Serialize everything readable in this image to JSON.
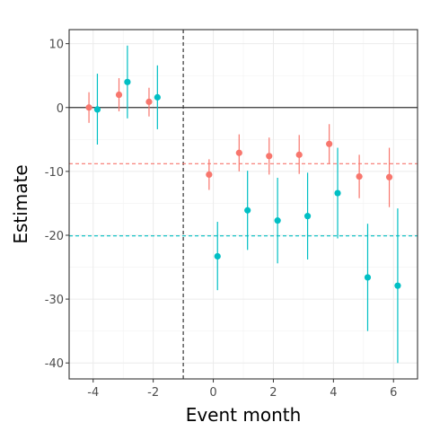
{
  "chart_data": {
    "type": "scatter",
    "xlabel": "Event month",
    "ylabel": "Estimate",
    "xlim": [
      -4.8,
      6.8
    ],
    "ylim": [
      -42.5,
      12.2
    ],
    "xticks": [
      -4,
      -2,
      0,
      2,
      4,
      6
    ],
    "yticks": [
      10,
      0,
      -10,
      -20,
      -30,
      -40
    ],
    "grid": true,
    "legend": "none",
    "event_line_x": -1,
    "zero_line_y": 0,
    "series": [
      {
        "color": "#F8766D",
        "mean_line": -8.8,
        "points": [
          {
            "x": -4,
            "y": 0.0,
            "lo": -2.4,
            "hi": 2.4
          },
          {
            "x": -3,
            "y": 2.0,
            "lo": -0.6,
            "hi": 4.6
          },
          {
            "x": -2,
            "y": 0.9,
            "lo": -1.4,
            "hi": 3.1
          },
          {
            "x": 0,
            "y": -10.5,
            "lo": -12.9,
            "hi": -8.1
          },
          {
            "x": 1,
            "y": -7.1,
            "lo": -10.0,
            "hi": -4.2
          },
          {
            "x": 2,
            "y": -7.6,
            "lo": -10.5,
            "hi": -4.7
          },
          {
            "x": 3,
            "y": -7.4,
            "lo": -10.4,
            "hi": -4.3
          },
          {
            "x": 4,
            "y": -5.7,
            "lo": -8.8,
            "hi": -2.6
          },
          {
            "x": 5,
            "y": -10.8,
            "lo": -14.2,
            "hi": -7.4
          },
          {
            "x": 6,
            "y": -10.9,
            "lo": -15.6,
            "hi": -6.3
          }
        ]
      },
      {
        "color": "#00BFC4",
        "mean_line": -20.1,
        "points": [
          {
            "x": -4,
            "y": -0.3,
            "lo": -5.8,
            "hi": 5.3
          },
          {
            "x": -3,
            "y": 4.0,
            "lo": -1.7,
            "hi": 9.7
          },
          {
            "x": -2,
            "y": 1.6,
            "lo": -3.4,
            "hi": 6.6
          },
          {
            "x": 0,
            "y": -23.3,
            "lo": -28.6,
            "hi": -17.9
          },
          {
            "x": 1,
            "y": -16.1,
            "lo": -22.3,
            "hi": -9.9
          },
          {
            "x": 2,
            "y": -17.7,
            "lo": -24.4,
            "hi": -11.0
          },
          {
            "x": 3,
            "y": -17.0,
            "lo": -23.8,
            "hi": -10.2
          },
          {
            "x": 4,
            "y": -13.4,
            "lo": -20.5,
            "hi": -6.3
          },
          {
            "x": 5,
            "y": -26.6,
            "lo": -35.0,
            "hi": -18.2
          },
          {
            "x": 6,
            "y": -27.9,
            "lo": -40.0,
            "hi": -15.8
          }
        ]
      }
    ]
  }
}
